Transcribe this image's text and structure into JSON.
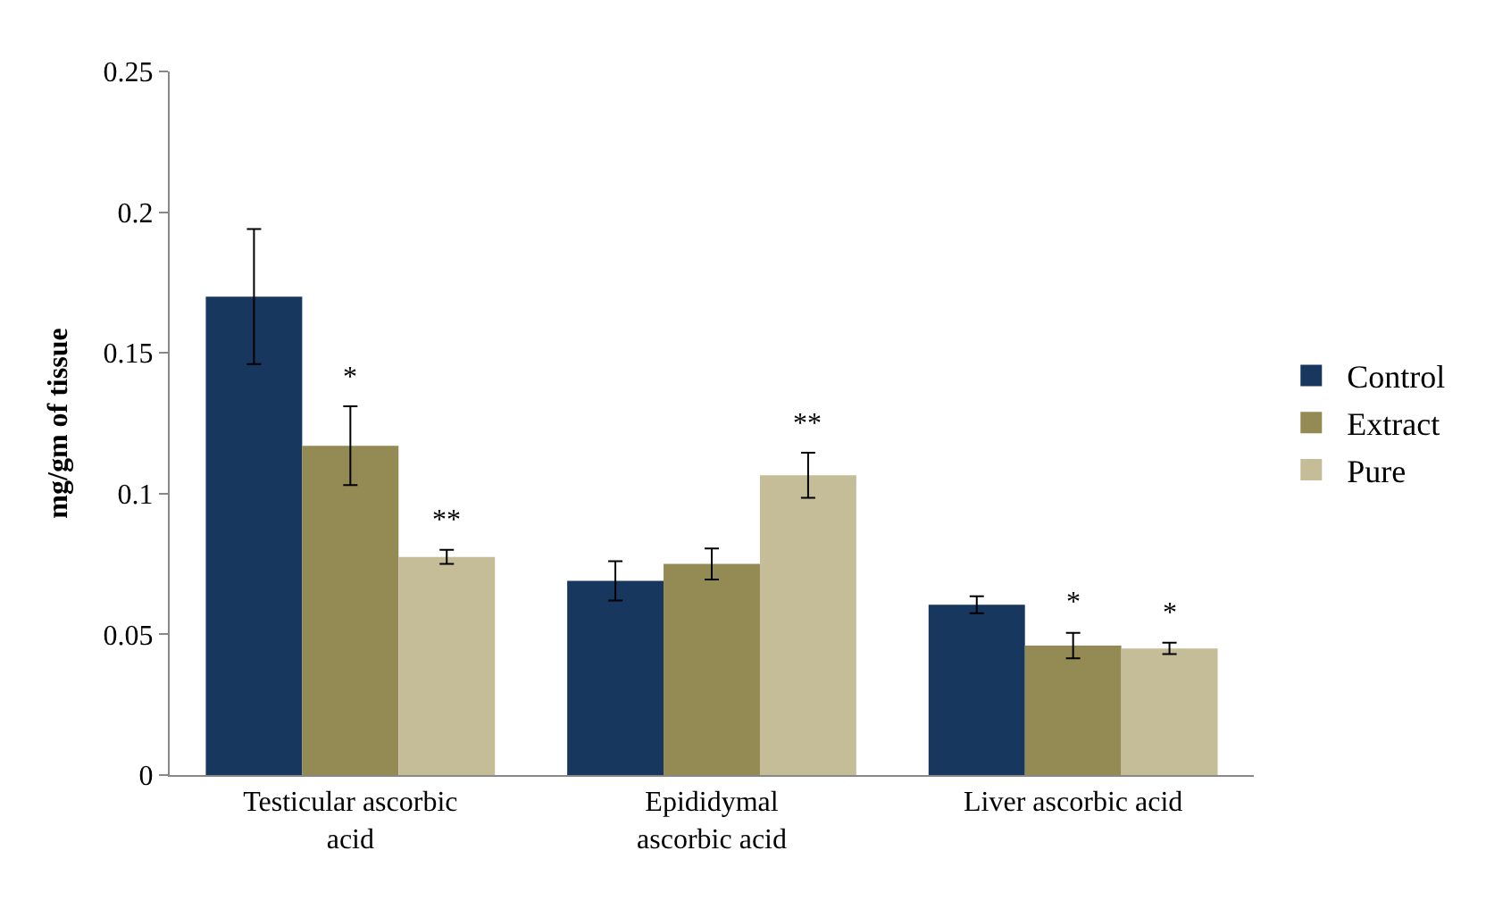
{
  "chart_data": {
    "type": "bar",
    "ylabel": "mg/gm of tissue",
    "categories": [
      "Testicular ascorbic\nacid",
      "Epididymal\nascorbic acid",
      "Liver ascorbic acid"
    ],
    "series": [
      {
        "name": "Control",
        "color": "#17375e",
        "values": [
          0.17,
          0.069,
          0.0605
        ],
        "errors": [
          0.024,
          0.007,
          0.003
        ]
      },
      {
        "name": "Extract",
        "color": "#948a54",
        "values": [
          0.117,
          0.075,
          0.046
        ],
        "errors": [
          0.014,
          0.0055,
          0.0045
        ],
        "value_labels": [
          "*",
          null,
          "*"
        ]
      },
      {
        "name": "Pure",
        "color": "#c4bd97",
        "values": [
          0.0775,
          0.1065,
          0.045
        ],
        "errors": [
          0.0025,
          0.008,
          0.002
        ],
        "value_labels": [
          "**",
          "**",
          "*"
        ]
      }
    ],
    "ylim": [
      0,
      0.25
    ],
    "yticks": [
      0,
      0.05,
      0.1,
      0.15,
      0.2,
      0.25
    ],
    "legend": "right"
  }
}
